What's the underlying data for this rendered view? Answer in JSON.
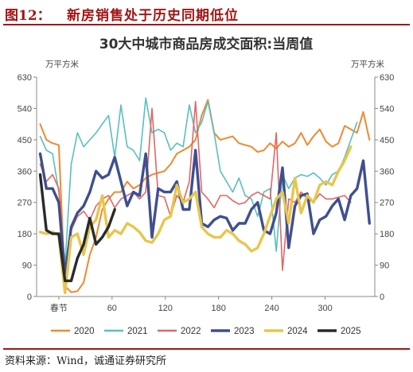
{
  "figure": {
    "number": "图12：",
    "title": "新房销售处于历史同期低位",
    "source": "资料来源：Wind，诚通证券研究所"
  },
  "chart_data": {
    "type": "line",
    "title": "30大中城市商品房成交面积:当周值",
    "y_unit_left": "万平方米",
    "y_unit_right": "万平方米",
    "ylim": [
      0,
      630
    ],
    "yticks": [
      0,
      90,
      180,
      270,
      360,
      450,
      540,
      630
    ],
    "xlim": [
      -25,
      356
    ],
    "xticks": [
      {
        "value": 0,
        "label": "春节"
      },
      {
        "value": 60,
        "label": "60"
      },
      {
        "value": 120,
        "label": "120"
      },
      {
        "value": 180,
        "label": "180"
      },
      {
        "value": 240,
        "label": "240"
      },
      {
        "value": 300,
        "label": "300"
      }
    ],
    "x_unit": "days relative to Spring Festival",
    "grid": false,
    "legend_position": "bottom",
    "series": [
      {
        "name": "2020",
        "color": "#ee8a2e",
        "width": 2,
        "x": [
          -21,
          -14,
          -7,
          0,
          7,
          14,
          21,
          28,
          35,
          42,
          49,
          56,
          63,
          70,
          77,
          84,
          91,
          98,
          105,
          112,
          119,
          126,
          133,
          140,
          147,
          154,
          161,
          168,
          175,
          182,
          189,
          196,
          203,
          210,
          217,
          224,
          231,
          238,
          245,
          252,
          259,
          266,
          273,
          280,
          287,
          294,
          301,
          308,
          315,
          322,
          329,
          336,
          343,
          350
        ],
        "y": [
          495,
          450,
          440,
          435,
          30,
          12,
          15,
          40,
          120,
          170,
          250,
          280,
          300,
          300,
          330,
          310,
          320,
          340,
          350,
          355,
          360,
          380,
          410,
          420,
          430,
          450,
          520,
          565,
          470,
          450,
          455,
          460,
          440,
          435,
          430,
          415,
          420,
          440,
          425,
          445,
          430,
          440,
          470,
          435,
          460,
          480,
          445,
          430,
          440,
          490,
          480,
          470,
          530,
          450
        ]
      },
      {
        "name": "2021",
        "color": "#56c0c0",
        "width": 1.6,
        "x": [
          -21,
          -14,
          -7,
          0,
          7,
          14,
          21,
          28,
          35,
          42,
          49,
          56,
          63,
          70,
          77,
          84,
          91,
          98,
          105,
          112,
          119,
          126,
          133,
          140,
          147,
          154,
          161,
          168,
          175,
          182,
          189,
          196,
          203,
          210,
          217,
          224,
          231,
          238,
          245,
          252,
          259,
          266,
          273,
          280,
          287,
          294,
          301,
          308,
          315,
          322,
          329,
          336
        ],
        "y": [
          460,
          420,
          410,
          300,
          90,
          380,
          470,
          430,
          450,
          470,
          495,
          520,
          400,
          550,
          430,
          420,
          390,
          570,
          470,
          480,
          470,
          420,
          440,
          430,
          550,
          470,
          500,
          560,
          470,
          360,
          330,
          300,
          340,
          290,
          280,
          230,
          300,
          310,
          130,
          350,
          310,
          340,
          350,
          345,
          355,
          340,
          320,
          350,
          360,
          400,
          450,
          500
        ]
      },
      {
        "name": "2022",
        "color": "#e06666",
        "width": 1.6,
        "x": [
          -21,
          -14,
          -7,
          0,
          7,
          14,
          21,
          28,
          35,
          42,
          49,
          56,
          63,
          70,
          77,
          84,
          91,
          98,
          105,
          112,
          119,
          126,
          133,
          140,
          147,
          154,
          161,
          168,
          175,
          182,
          189,
          196,
          203,
          210,
          217,
          224,
          231,
          238,
          245,
          252,
          259,
          266,
          273,
          280,
          287,
          294,
          301,
          308,
          315,
          322,
          329
        ],
        "y": [
          380,
          330,
          350,
          310,
          80,
          190,
          230,
          245,
          220,
          260,
          280,
          290,
          255,
          280,
          290,
          300,
          280,
          300,
          540,
          290,
          285,
          230,
          290,
          270,
          330,
          560,
          300,
          280,
          255,
          290,
          290,
          275,
          265,
          270,
          290,
          300,
          290,
          280,
          470,
          75,
          280,
          270,
          300,
          280,
          270,
          295,
          280,
          280,
          285,
          290,
          270
        ]
      },
      {
        "name": "2023",
        "color": "#3f4f8f",
        "width": 3.4,
        "x": [
          -21,
          -14,
          -7,
          0,
          7,
          14,
          21,
          28,
          35,
          42,
          49,
          56,
          63,
          70,
          77,
          84,
          91,
          98,
          105,
          112,
          119,
          126,
          133,
          140,
          147,
          154,
          161,
          168,
          175,
          182,
          189,
          196,
          203,
          210,
          217,
          224,
          231,
          238,
          245,
          252,
          259,
          266,
          273,
          280,
          287,
          294,
          301,
          308,
          315,
          322,
          329,
          336,
          343,
          350
        ],
        "y": [
          410,
          310,
          310,
          270,
          60,
          200,
          240,
          260,
          300,
          360,
          340,
          350,
          400,
          330,
          260,
          300,
          290,
          410,
          170,
          310,
          300,
          300,
          330,
          250,
          250,
          420,
          210,
          200,
          220,
          230,
          225,
          190,
          210,
          210,
          250,
          270,
          190,
          180,
          240,
          370,
          140,
          260,
          290,
          295,
          180,
          220,
          230,
          260,
          280,
          220,
          290,
          310,
          390,
          210
        ]
      },
      {
        "name": "2024",
        "color": "#e8c64c",
        "width": 3.4,
        "x": [
          -21,
          -14,
          -7,
          0,
          7,
          14,
          21,
          28,
          35,
          42,
          49,
          56,
          63,
          70,
          77,
          84,
          91,
          98,
          105,
          112,
          119,
          126,
          133,
          140,
          147,
          154,
          161,
          168,
          175,
          182,
          189,
          196,
          203,
          210,
          217,
          224,
          231,
          238,
          245,
          252,
          259,
          266,
          273,
          280,
          287,
          294,
          301,
          308,
          315,
          322,
          329
        ],
        "y": [
          185,
          180,
          185,
          175,
          10,
          170,
          180,
          120,
          200,
          220,
          290,
          170,
          190,
          180,
          210,
          200,
          185,
          160,
          155,
          180,
          220,
          230,
          320,
          270,
          280,
          300,
          200,
          180,
          170,
          170,
          190,
          180,
          160,
          150,
          130,
          140,
          180,
          230,
          280,
          300,
          210,
          340,
          240,
          290,
          270,
          320,
          330,
          320,
          360,
          390,
          430
        ]
      },
      {
        "name": "2025",
        "color": "#2a2a2a",
        "width": 3.4,
        "x": [
          -21,
          -14,
          -7,
          0,
          7,
          14,
          21,
          28,
          35,
          42,
          49,
          56,
          63
        ],
        "y": [
          350,
          190,
          180,
          180,
          45,
          45,
          110,
          150,
          225,
          150,
          170,
          200,
          250
        ]
      }
    ]
  }
}
